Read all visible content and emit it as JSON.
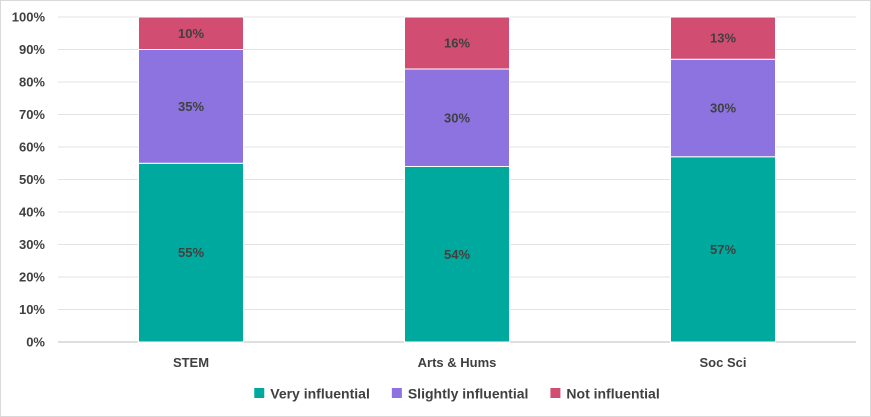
{
  "chart_data": {
    "type": "bar",
    "stacked": true,
    "categories": [
      "STEM",
      "Arts & Hums",
      "Soc Sci"
    ],
    "series": [
      {
        "name": "Very influential",
        "values": [
          55,
          54,
          57
        ],
        "labels": [
          "55%",
          "54%",
          "57%"
        ],
        "color": "#00a99d"
      },
      {
        "name": "Slightly influential",
        "values": [
          35,
          30,
          30
        ],
        "labels": [
          "35%",
          "30%",
          "30%"
        ],
        "color": "#8c73e0"
      },
      {
        "name": "Not influential",
        "values": [
          10,
          16,
          13
        ],
        "labels": [
          "10%",
          "16%",
          "13%"
        ],
        "color": "#d24d72"
      }
    ],
    "ylim": [
      0,
      100
    ],
    "yticks": [
      "0%",
      "10%",
      "20%",
      "30%",
      "40%",
      "50%",
      "60%",
      "70%",
      "80%",
      "90%",
      "100%"
    ],
    "grid": true,
    "legend_position": "bottom"
  }
}
